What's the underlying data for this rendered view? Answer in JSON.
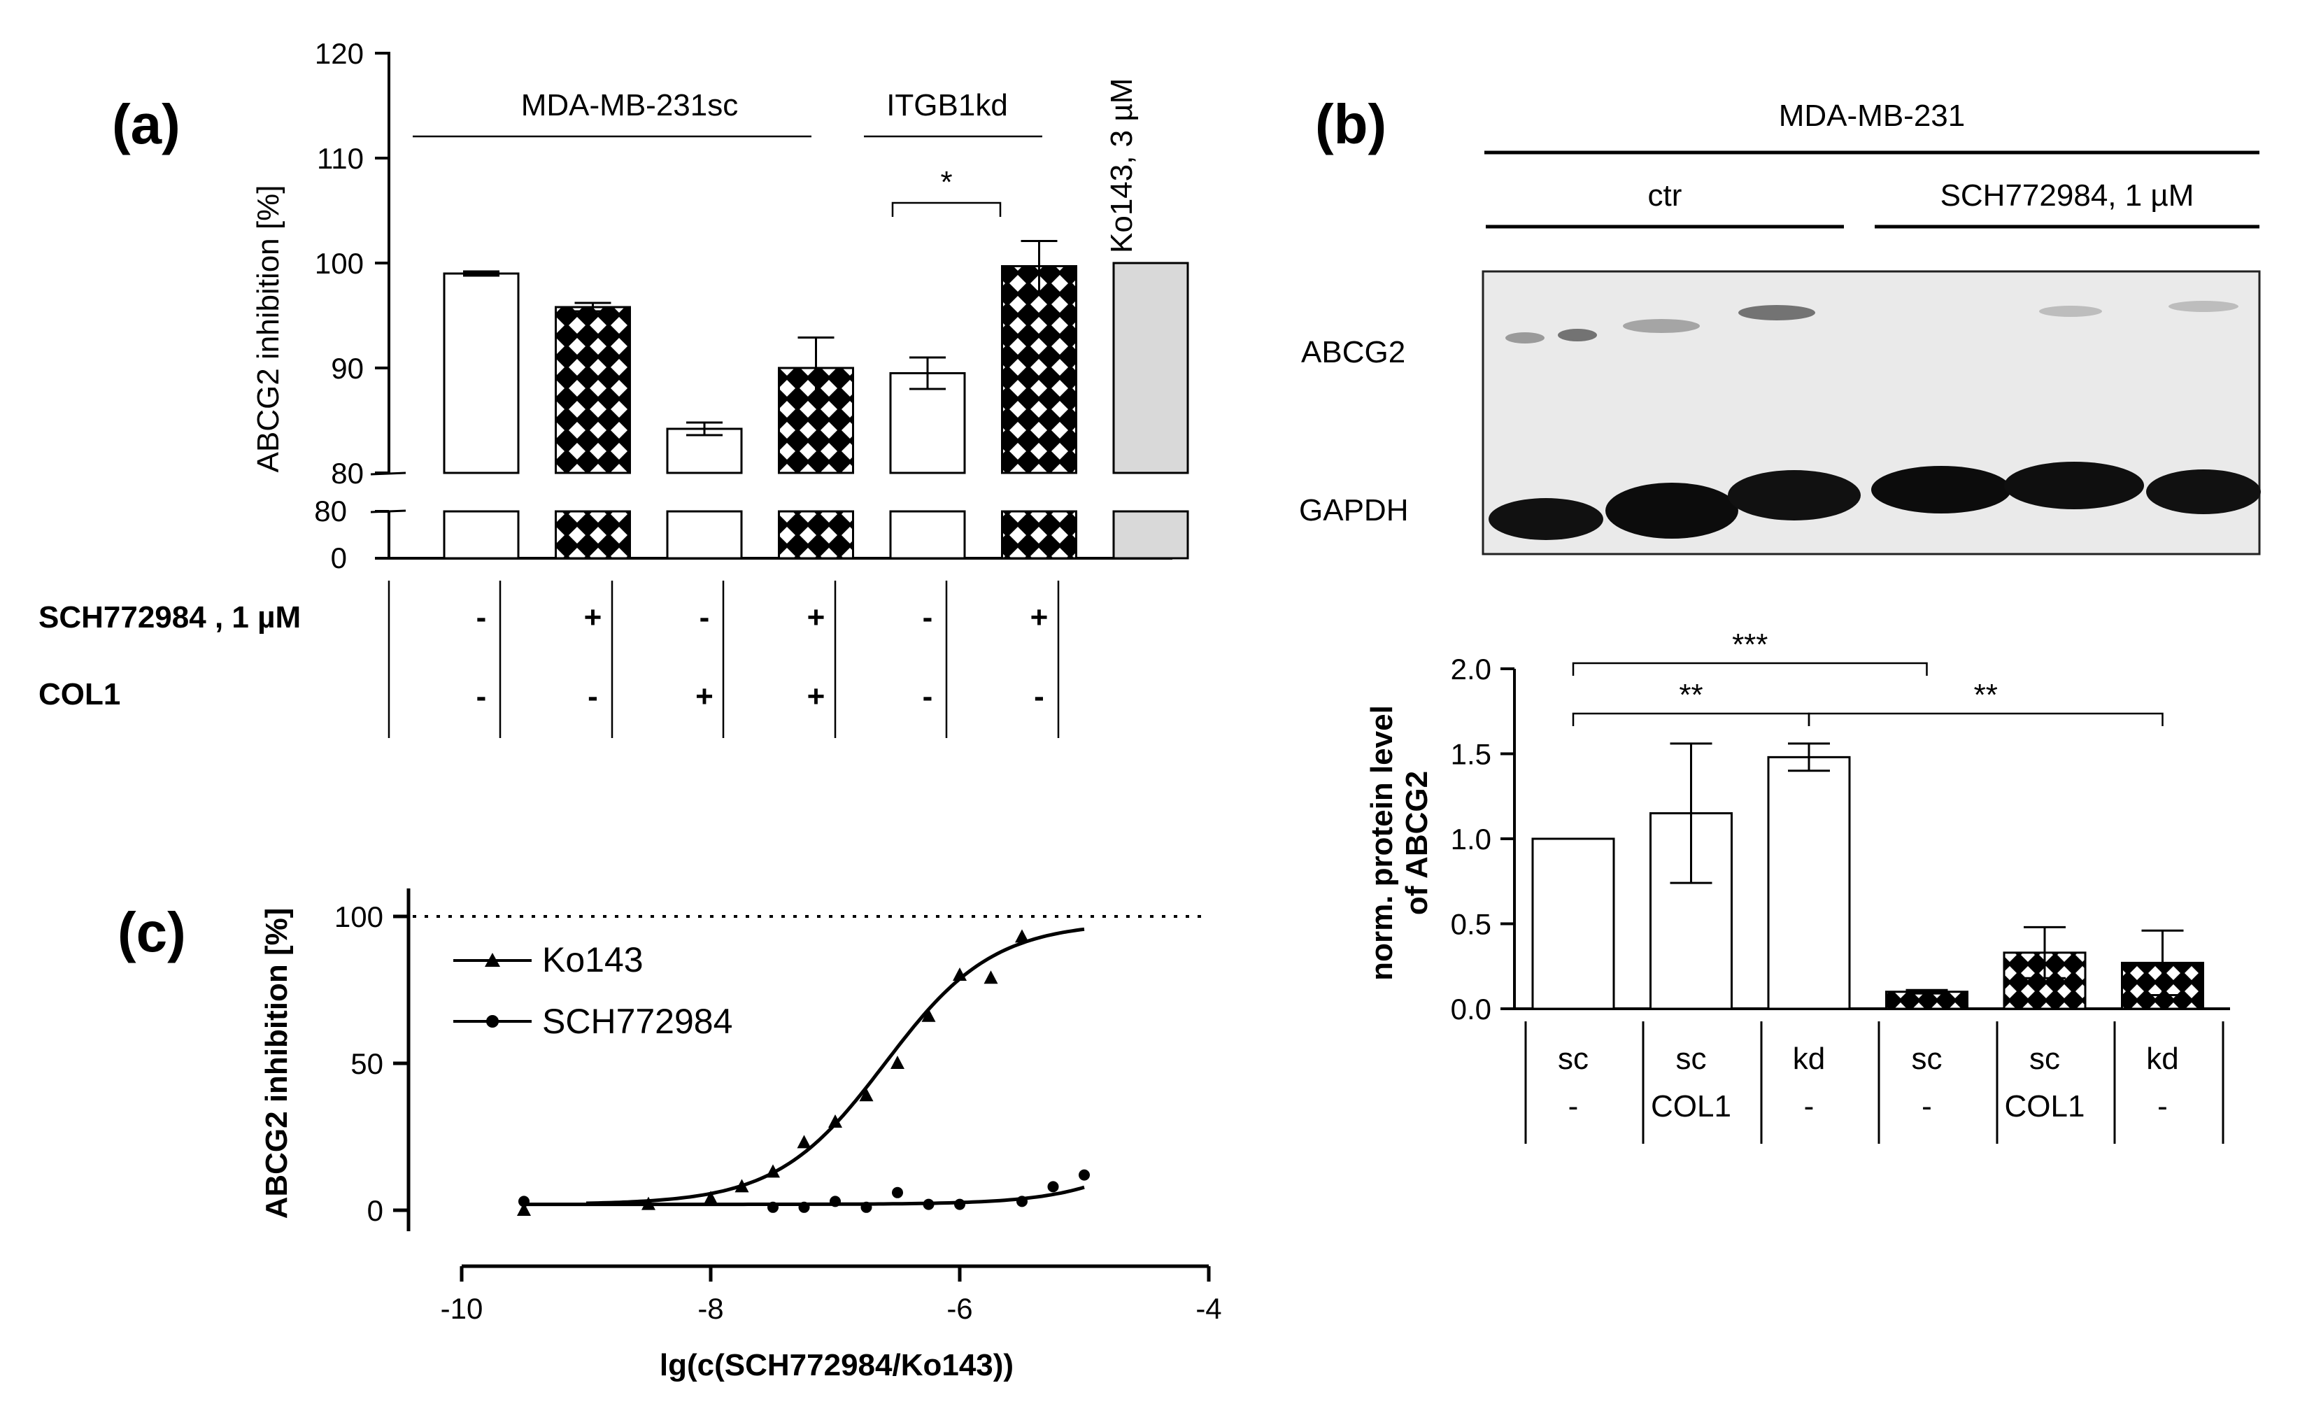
{
  "panels": {
    "a": {
      "panel_label": "(a)",
      "chart_data": {
        "type": "bar",
        "ylabel": "ABCG2 inhibition [%]",
        "ylim": [
          80,
          120
        ],
        "yticks": [
          "120",
          "110",
          "100",
          "90",
          "80"
        ],
        "lower_axis_ticks": [
          "80",
          "0"
        ],
        "bars": [
          {
            "value": 99,
            "error": 0.2,
            "pattern": "open"
          },
          {
            "value": 95.8,
            "error": 0.4,
            "pattern": "hatched"
          },
          {
            "value": 84.2,
            "error": 0.6,
            "pattern": "open"
          },
          {
            "value": 90,
            "error": 2.9,
            "pattern": "hatched"
          },
          {
            "value": 89.5,
            "error": 1.5,
            "pattern": "open"
          },
          {
            "value": 99.7,
            "error": 2.4,
            "pattern": "hatched"
          },
          {
            "value": 100,
            "error": 0,
            "pattern": "gray"
          }
        ],
        "groups": [
          "MDA-MB-231sc",
          "ITGB1kd"
        ],
        "ko_label": "Ko143, 3 µM",
        "significance": "*",
        "conditions": [
          {
            "name": "SCH772984 , 1 µM",
            "values": [
              "-",
              "+",
              "-",
              "+",
              "-",
              "+"
            ]
          },
          {
            "name": "COL1",
            "values": [
              "-",
              "-",
              "+",
              "+",
              "-",
              "-"
            ]
          }
        ]
      }
    },
    "b": {
      "panel_label": "(b)",
      "blot": {
        "cell_line": "MDA-MB-231",
        "groups": [
          "ctr",
          "SCH772984, 1 µM"
        ],
        "bands": [
          "ABCG2",
          "GAPDH"
        ]
      },
      "chart_data": {
        "type": "bar",
        "ylabel_line1": "norm. protein level",
        "ylabel_line2": "of ABCG2",
        "ylim": [
          0,
          2
        ],
        "yticks": [
          "2.0",
          "1.5",
          "1.0",
          "0.5",
          "0.0"
        ],
        "bars": [
          {
            "value": 1.0,
            "error": 0,
            "pattern": "open"
          },
          {
            "value": 1.15,
            "error": 0.41,
            "pattern": "open"
          },
          {
            "value": 1.48,
            "error": 0.08,
            "pattern": "open"
          },
          {
            "value": 0.1,
            "error": 0.01,
            "pattern": "hatched"
          },
          {
            "value": 0.33,
            "error": 0.15,
            "pattern": "hatched"
          },
          {
            "value": 0.27,
            "error": 0.19,
            "pattern": "hatched"
          }
        ],
        "categories_row1": [
          "sc",
          "sc",
          "kd",
          "sc",
          "sc",
          "kd"
        ],
        "categories_row2": [
          "-",
          "COL1",
          "-",
          "-",
          "COL1",
          "-"
        ],
        "significance": [
          {
            "label": "***",
            "from": 0,
            "to": 3
          },
          {
            "label": "**",
            "from": 0,
            "to": 2
          },
          {
            "label": "**",
            "from": 2,
            "to": 5
          }
        ]
      }
    },
    "c": {
      "panel_label": "(c)",
      "chart_data": {
        "type": "scatter",
        "xlabel": "lg(c(SCH772984/Ko143))",
        "ylabel": "ABCG2 inhibition [%]",
        "xlim": [
          -10,
          -4
        ],
        "ylim": [
          0,
          100
        ],
        "xticks": [
          "-10",
          "-8",
          "-6",
          "-4"
        ],
        "yticks": [
          "100",
          "50",
          "0"
        ],
        "reference_line": 100,
        "series": [
          {
            "name": "Ko143",
            "marker": "triangle",
            "x": [
              -9.5,
              -8.5,
              -8.0,
              -7.75,
              -7.5,
              -7.25,
              -7.0,
              -6.75,
              -6.5,
              -6.25,
              -6.0,
              -5.75,
              -5.5
            ],
            "y": [
              0,
              2,
              4,
              8,
              13,
              23,
              30,
              39,
              50,
              66,
              80,
              79,
              93
            ],
            "fit_x": [
              -9.0,
              -5.0
            ],
            "fit": {
              "bottom": 2,
              "top": 98,
              "log_ec50": -6.6,
              "hill": 1.0
            }
          },
          {
            "name": "SCH772984",
            "marker": "circle",
            "x": [
              -9.5,
              -7.5,
              -7.25,
              -7.0,
              -6.75,
              -6.5,
              -6.25,
              -6.0,
              -5.5,
              -5.25,
              -5.0
            ],
            "y": [
              3,
              1,
              1,
              3,
              1,
              6,
              2,
              2,
              3,
              8,
              12
            ],
            "fit_x": [
              -9.5,
              -5.0
            ],
            "fit": {
              "bottom": 2,
              "top": 90,
              "log_ec50": -3.85,
              "hill": 1.0
            }
          }
        ]
      }
    }
  }
}
